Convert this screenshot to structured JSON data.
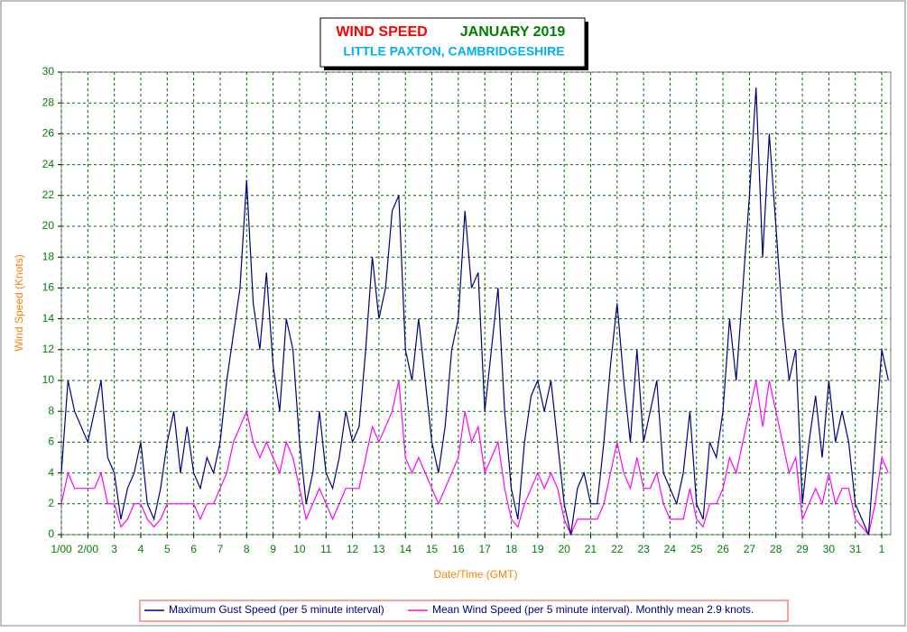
{
  "chart_data": {
    "type": "line",
    "title": "WIND SPEED",
    "title_month": "JANUARY 2019",
    "subtitle": "LITTLE PAXTON, CAMBRIDGESHIRE",
    "xlabel": "Date/Time (GMT)",
    "ylabel": "Wind Speed (Knots)",
    "xlim": [
      1,
      32.34
    ],
    "ylim": [
      0,
      30
    ],
    "yticks": [
      0,
      2,
      4,
      6,
      8,
      10,
      12,
      14,
      16,
      18,
      20,
      22,
      24,
      26,
      28,
      30
    ],
    "xticks": [
      {
        "value": 1,
        "label": "1/00"
      },
      {
        "value": 2,
        "label": "2/00"
      },
      3,
      4,
      5,
      6,
      7,
      8,
      9,
      10,
      11,
      12,
      13,
      14,
      15,
      16,
      17,
      18,
      19,
      20,
      21,
      22,
      23,
      24,
      25,
      26,
      27,
      28,
      29,
      30,
      31,
      {
        "value": 32,
        "label": "1"
      }
    ],
    "grid": true,
    "x": [
      1,
      1.25,
      1.5,
      1.75,
      2,
      2.25,
      2.5,
      2.75,
      3,
      3.25,
      3.5,
      3.75,
      4,
      4.25,
      4.5,
      4.75,
      5,
      5.25,
      5.5,
      5.75,
      6,
      6.25,
      6.5,
      6.75,
      7,
      7.25,
      7.5,
      7.75,
      8,
      8.25,
      8.5,
      8.75,
      9,
      9.25,
      9.5,
      9.75,
      10,
      10.25,
      10.5,
      10.75,
      11,
      11.25,
      11.5,
      11.75,
      12,
      12.25,
      12.5,
      12.75,
      13,
      13.25,
      13.5,
      13.75,
      14,
      14.25,
      14.5,
      14.75,
      15,
      15.25,
      15.5,
      15.75,
      16,
      16.25,
      16.5,
      16.75,
      17,
      17.25,
      17.5,
      17.75,
      18,
      18.25,
      18.5,
      18.75,
      19,
      19.25,
      19.5,
      19.75,
      20,
      20.25,
      20.5,
      20.75,
      21,
      21.25,
      21.5,
      21.75,
      22,
      22.25,
      22.5,
      22.75,
      23,
      23.25,
      23.5,
      23.75,
      24,
      24.25,
      24.5,
      24.75,
      25,
      25.25,
      25.5,
      25.75,
      26,
      26.25,
      26.5,
      26.75,
      27,
      27.25,
      27.5,
      27.75,
      28,
      28.25,
      28.5,
      28.75,
      29,
      29.25,
      29.5,
      29.75,
      30,
      30.25,
      30.5,
      30.75,
      31,
      31.25,
      31.5,
      31.75,
      32,
      32.25
    ],
    "series": [
      {
        "name": "Maximum Gust Speed (per 5 minute interval)",
        "color": "#000080",
        "values": [
          4,
          10,
          8,
          7,
          6,
          8,
          10,
          5,
          4,
          1,
          3,
          4,
          6,
          2,
          1,
          3,
          6,
          8,
          4,
          7,
          4,
          3,
          5,
          4,
          6,
          10,
          13,
          16,
          23,
          15,
          12,
          17,
          11,
          8,
          14,
          12,
          6,
          2,
          4,
          8,
          4,
          3,
          5,
          8,
          6,
          7,
          12,
          18,
          14,
          16,
          21,
          22,
          12,
          10,
          14,
          10,
          6,
          4,
          7,
          12,
          14,
          21,
          16,
          17,
          8,
          12,
          16,
          8,
          3,
          1,
          6,
          9,
          10,
          8,
          10,
          6,
          2,
          0,
          3,
          4,
          2,
          2,
          6,
          11,
          15,
          10,
          6,
          12,
          6,
          8,
          10,
          4,
          3,
          2,
          4,
          8,
          2,
          1,
          6,
          5,
          8,
          14,
          10,
          16,
          22,
          29,
          18,
          26,
          20,
          14,
          10,
          12,
          2,
          6,
          9,
          5,
          10,
          6,
          8,
          6,
          2,
          1,
          0,
          6,
          12,
          10
        ]
      },
      {
        "name": "Mean Wind Speed (per 5 minute interval). Monthly mean 2.9 knots.",
        "color": "#ff00ff",
        "values": [
          2,
          4,
          3,
          3,
          3,
          3,
          4,
          2,
          2,
          0.5,
          1,
          2,
          2,
          1,
          0.5,
          1,
          2,
          2,
          2,
          2,
          2,
          1,
          2,
          2,
          3,
          4,
          6,
          7,
          8,
          6,
          5,
          6,
          5,
          4,
          6,
          5,
          3,
          1,
          2,
          3,
          2,
          1,
          2,
          3,
          3,
          3,
          5,
          7,
          6,
          7,
          8,
          10,
          5,
          4,
          5,
          4,
          3,
          2,
          3,
          4,
          5,
          8,
          6,
          7,
          4,
          5,
          6,
          3,
          1,
          0.5,
          2,
          3,
          4,
          3,
          4,
          3,
          1,
          0,
          1,
          1,
          1,
          1,
          2,
          4,
          6,
          4,
          3,
          5,
          3,
          3,
          4,
          2,
          1,
          1,
          1,
          3,
          1,
          0.5,
          2,
          2,
          3,
          5,
          4,
          6,
          8,
          10,
          7,
          10,
          8,
          6,
          4,
          5,
          1,
          2,
          3,
          2,
          4,
          2,
          3,
          3,
          1,
          0.5,
          0,
          2,
          5,
          4
        ]
      }
    ]
  }
}
